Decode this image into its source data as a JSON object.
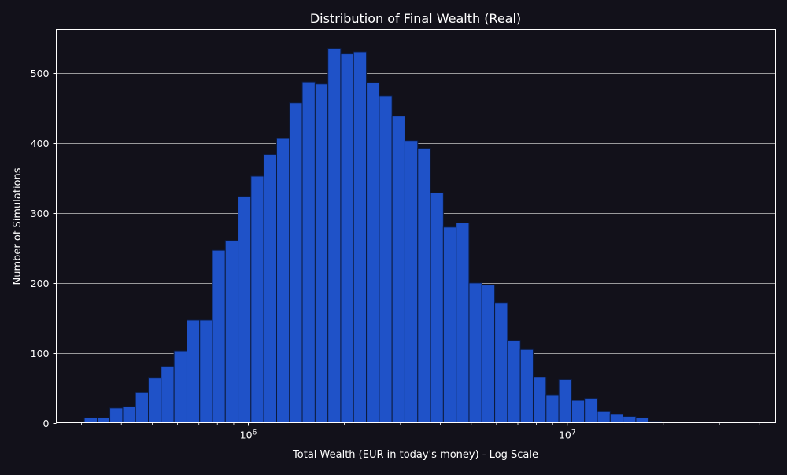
{
  "chart_data": {
    "type": "bar",
    "title": "Distribution of Final Wealth (Real)",
    "xlabel": "Total Wealth (EUR in today's money) - Log Scale",
    "ylabel": "Number of Simulations",
    "x_scale": "log",
    "xlim": [
      250000,
      45000000
    ],
    "ylim": [
      0,
      563
    ],
    "grid": "horizontal",
    "bar_color": "#1f52c8",
    "bar_edge_color": "#0d1b3d",
    "background_color": "#12111a",
    "grid_color": "#c9c9c9",
    "y_ticks": [
      0,
      100,
      200,
      300,
      400,
      500
    ],
    "x_ticks": [
      {
        "value": 1000000,
        "label": "10^6"
      },
      {
        "value": 10000000,
        "label": "10^7"
      }
    ],
    "bin_edges": [
      306000,
      336000,
      368000,
      404000,
      443000,
      486000,
      533000,
      585000,
      642000,
      704000,
      772000,
      847000,
      929000,
      1019000,
      1118000,
      1227000,
      1346000,
      1476000,
      1620000,
      1777000,
      1949000,
      2138000,
      2346000,
      2573000,
      2823000,
      3097000,
      3398000,
      3727000,
      4089000,
      4486000,
      4921000,
      5399000,
      5923000,
      6498000,
      7128000,
      7820000,
      8579000,
      9412000,
      10325000,
      11327000,
      12426000,
      13633000,
      14956000,
      16407000,
      17999000,
      19746000,
      21663000,
      23765000,
      26072000,
      28602000,
      31378000,
      34424000,
      37765000
    ],
    "values": [
      7,
      7,
      21,
      23,
      43,
      64,
      80,
      103,
      147,
      147,
      247,
      261,
      324,
      353,
      384,
      407,
      458,
      488,
      485,
      536,
      528,
      531,
      487,
      468,
      439,
      404,
      393,
      329,
      280,
      286,
      200,
      197,
      172,
      118,
      105,
      65,
      40,
      62,
      32,
      35,
      16,
      12,
      9,
      7,
      2,
      1,
      0,
      0,
      0,
      0,
      0,
      0
    ]
  }
}
